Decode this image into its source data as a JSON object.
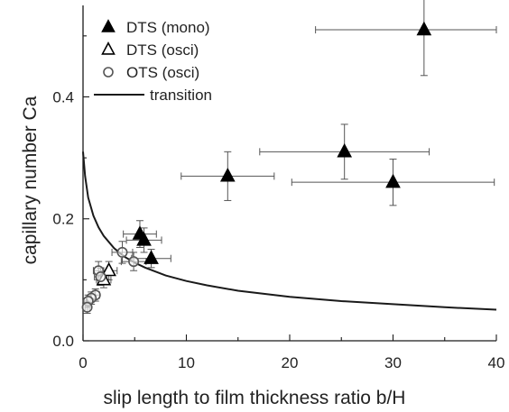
{
  "chart_data": {
    "type": "scatter",
    "xlabel": "slip length to film thickness ratio b/H",
    "ylabel": "capillary number Ca",
    "xlim": [
      0,
      40
    ],
    "ylim": [
      0,
      0.55
    ],
    "xticks": [
      0,
      10,
      20,
      30,
      40
    ],
    "yticks": [
      0.0,
      0.2,
      0.4
    ],
    "x_tick_labels": [
      "0",
      "10",
      "20",
      "30",
      "40"
    ],
    "y_tick_labels": [
      "0.0",
      "0.2",
      "0.4"
    ],
    "grid": false,
    "legend_position": "top-left",
    "series": [
      {
        "name": "DTS (mono)",
        "marker": "filled-triangle",
        "color": "#000000",
        "points": [
          {
            "x": 33,
            "y": 0.51,
            "xerr": 10.5,
            "yerr": 0.075
          },
          {
            "x": 14,
            "y": 0.27,
            "xerr": 4.5,
            "yerr": 0.04
          },
          {
            "x": 25.3,
            "y": 0.31,
            "xerr": 8.2,
            "yerr": 0.045
          },
          {
            "x": 30,
            "y": 0.26,
            "xerr": 9.8,
            "yerr": 0.038
          },
          {
            "x": 5.5,
            "y": 0.175,
            "xerr": 1.6,
            "yerr": 0.022
          },
          {
            "x": 5.9,
            "y": 0.165,
            "xerr": 1.7,
            "yerr": 0.02
          },
          {
            "x": 6.6,
            "y": 0.135,
            "xerr": 1.9,
            "yerr": 0.015
          }
        ]
      },
      {
        "name": "DTS (osci)",
        "marker": "open-triangle",
        "color": "#000000",
        "points": [
          {
            "x": 2.5,
            "y": 0.115,
            "xerr": 0.8,
            "yerr": 0.015
          },
          {
            "x": 2.0,
            "y": 0.1,
            "xerr": 0.7,
            "yerr": 0.013
          }
        ]
      },
      {
        "name": "OTS (osci)",
        "marker": "open-circle",
        "color": "#555555",
        "points": [
          {
            "x": 3.8,
            "y": 0.145,
            "xerr": 1.0,
            "yerr": 0.018
          },
          {
            "x": 4.9,
            "y": 0.13,
            "xerr": 1.2,
            "yerr": 0.015
          },
          {
            "x": 1.5,
            "y": 0.115,
            "xerr": 0.5,
            "yerr": 0.015
          },
          {
            "x": 1.7,
            "y": 0.105,
            "xerr": 0.6,
            "yerr": 0.014
          },
          {
            "x": 1.2,
            "y": 0.075,
            "xerr": 0.4,
            "yerr": 0.01
          },
          {
            "x": 0.8,
            "y": 0.07,
            "xerr": 0.3,
            "yerr": 0.01
          },
          {
            "x": 0.5,
            "y": 0.065,
            "xerr": 0.2,
            "yerr": 0.01
          },
          {
            "x": 0.4,
            "y": 0.055,
            "xerr": 0.2,
            "yerr": 0.01
          }
        ]
      },
      {
        "name": "transition",
        "marker": "line",
        "color": "#1a1a1a",
        "curve": [
          {
            "x": 0.0,
            "y": 0.31
          },
          {
            "x": 0.2,
            "y": 0.27
          },
          {
            "x": 0.5,
            "y": 0.235
          },
          {
            "x": 1.0,
            "y": 0.205
          },
          {
            "x": 1.5,
            "y": 0.186
          },
          {
            "x": 2.0,
            "y": 0.172
          },
          {
            "x": 3.0,
            "y": 0.152
          },
          {
            "x": 4.0,
            "y": 0.138
          },
          {
            "x": 5.0,
            "y": 0.128
          },
          {
            "x": 6.0,
            "y": 0.12
          },
          {
            "x": 8.0,
            "y": 0.107
          },
          {
            "x": 10.0,
            "y": 0.098
          },
          {
            "x": 12.0,
            "y": 0.091
          },
          {
            "x": 15.0,
            "y": 0.082
          },
          {
            "x": 20.0,
            "y": 0.072
          },
          {
            "x": 25.0,
            "y": 0.065
          },
          {
            "x": 30.0,
            "y": 0.06
          },
          {
            "x": 35.0,
            "y": 0.055
          },
          {
            "x": 40.0,
            "y": 0.051
          }
        ]
      }
    ]
  }
}
